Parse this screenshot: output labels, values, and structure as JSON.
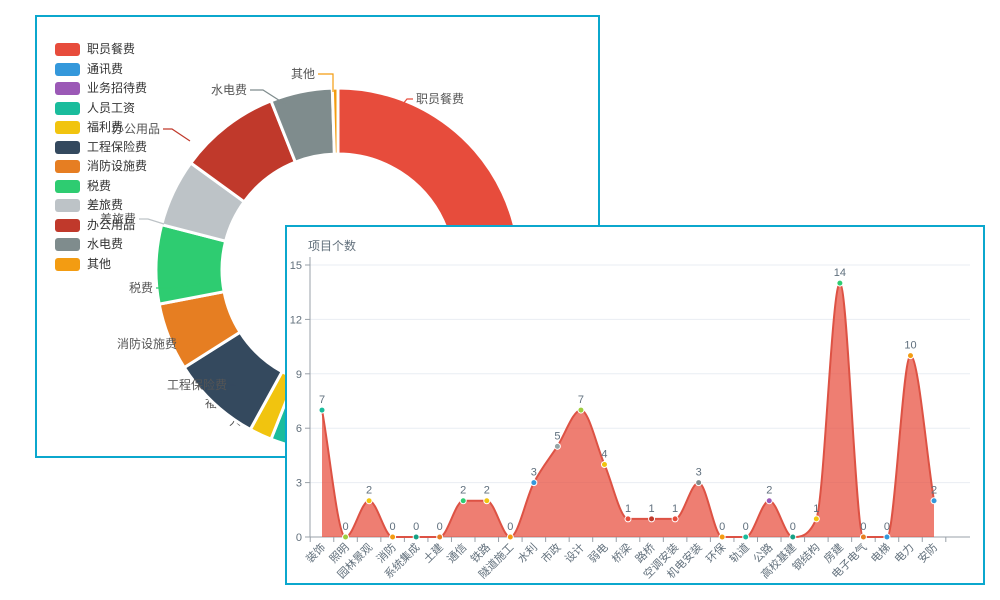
{
  "app": {
    "background": "#ffffff",
    "panel_border_color": "#0ba7cd"
  },
  "chart_data": [
    {
      "type": "pie",
      "subtype": "donut",
      "legend_position": "left",
      "labels_on_chart": true,
      "items": [
        {
          "name": "职员餐费",
          "value": 36,
          "color": "#e74c3c"
        },
        {
          "name": "通讯费",
          "value": 12,
          "color": "#3498db"
        },
        {
          "name": "业务招待费",
          "value": 3,
          "color": "#9b59b6"
        },
        {
          "name": "人员工资",
          "value": 5,
          "color": "#1abc9c"
        },
        {
          "name": "福利费",
          "value": 2,
          "color": "#f1c40f"
        },
        {
          "name": "工程保险费",
          "value": 8,
          "color": "#34495e"
        },
        {
          "name": "消防设施费",
          "value": 6,
          "color": "#e67e22"
        },
        {
          "name": "税费",
          "value": 7,
          "color": "#2ecc71"
        },
        {
          "name": "差旅费",
          "value": 6,
          "color": "#bdc3c7"
        },
        {
          "name": "办公用品",
          "value": 9,
          "color": "#c0392b"
        },
        {
          "name": "水电费",
          "value": 5.5,
          "color": "#7f8c8d"
        },
        {
          "name": "其他",
          "value": 0.5,
          "color": "#f39c12"
        }
      ]
    },
    {
      "type": "area",
      "title": "项目个数",
      "smooth": true,
      "grid": true,
      "ylim": [
        0,
        15
      ],
      "yticks": [
        "0",
        "3",
        "6",
        "9",
        "12",
        "15"
      ],
      "categories": [
        "装饰",
        "照明",
        "园林景观",
        "消防",
        "系统集成",
        "土建",
        "通信",
        "铁路",
        "隧道施工",
        "水利",
        "市政",
        "设计",
        "弱电",
        "桥梁",
        "路桥",
        "空调安装",
        "机电安装",
        "环保",
        "轨道",
        "公路",
        "高校基建",
        "钢结构",
        "房建",
        "电子电气",
        "电梯",
        "电力",
        "安防"
      ],
      "values": [
        7,
        0,
        2,
        0,
        0,
        0,
        2,
        2,
        0,
        3,
        5,
        7,
        4,
        1,
        1,
        1,
        3,
        0,
        0,
        2,
        0,
        1,
        14,
        0,
        0,
        10,
        2
      ],
      "line_color": "#dd5244",
      "fill_color": "#e74c3c",
      "fill_opacity": 0.72,
      "marker_colors": [
        "#1abc9c",
        "#9fcd3f",
        "#f1c40f",
        "#f39c12",
        "#16a085",
        "#e67e22",
        "#2ecc71",
        "#f1c40f",
        "#f39c12",
        "#3498db",
        "#95a5a6",
        "#9fcd3f",
        "#f1c40f",
        "#e74c3c",
        "#c0392b",
        "#e74c3c",
        "#7f8c8d",
        "#f39c12",
        "#1abc9c",
        "#9b59b6",
        "#16a085",
        "#f1c40f",
        "#2ecc71",
        "#e67e22",
        "#3498db",
        "#f39c12",
        "#3498db"
      ],
      "axis_color": "#99a0a8",
      "grid_color": "#e9edf3",
      "text_color": "#62707c"
    }
  ]
}
